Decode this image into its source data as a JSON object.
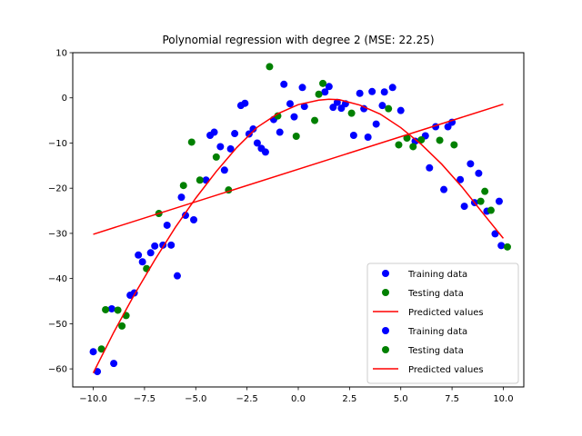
{
  "chart_data": {
    "type": "scatter",
    "title": "Polynomial regression with degree 2 (MSE: 22.25)",
    "xlabel": "",
    "ylabel": "",
    "xlim": [
      -11,
      11
    ],
    "ylim": [
      -64,
      10
    ],
    "x_ticks": [
      -10.0,
      -7.5,
      -5.0,
      -2.5,
      0.0,
      2.5,
      5.0,
      7.5,
      10.0
    ],
    "x_tick_labels": [
      "−10.0",
      "−7.5",
      "−5.0",
      "−2.5",
      "0.0",
      "2.5",
      "5.0",
      "7.5",
      "10.0"
    ],
    "y_ticks": [
      -60,
      -50,
      -40,
      -30,
      -20,
      -10,
      0,
      10
    ],
    "y_tick_labels": [
      "−60",
      "−50",
      "−40",
      "−30",
      "−20",
      "−10",
      "0",
      "10"
    ],
    "grid": false,
    "legend_position": "lower-right",
    "legend": [
      {
        "label": "Training data",
        "kind": "marker",
        "color": "#0000ff"
      },
      {
        "label": "Testing data",
        "kind": "marker",
        "color": "#008000"
      },
      {
        "label": "Predicted values",
        "kind": "line",
        "color": "#ff0000"
      },
      {
        "label": "Training data",
        "kind": "marker",
        "color": "#0000ff"
      },
      {
        "label": "Testing data",
        "kind": "marker",
        "color": "#008000"
      },
      {
        "label": "Predicted values",
        "kind": "line",
        "color": "#ff0000"
      }
    ],
    "series": [
      {
        "name": "Training data",
        "kind": "scatter",
        "color": "#0000ff",
        "points": [
          [
            -10.0,
            -56.2
          ],
          [
            -9.8,
            -60.6
          ],
          [
            -9.1,
            -46.7
          ],
          [
            -9.0,
            -58.8
          ],
          [
            -8.2,
            -43.7
          ],
          [
            -8.0,
            -43.2
          ],
          [
            -7.8,
            -34.8
          ],
          [
            -7.6,
            -36.3
          ],
          [
            -7.2,
            -34.3
          ],
          [
            -7.0,
            -32.8
          ],
          [
            -6.6,
            -32.6
          ],
          [
            -6.4,
            -28.2
          ],
          [
            -6.2,
            -32.6
          ],
          [
            -5.9,
            -39.4
          ],
          [
            -5.7,
            -22.0
          ],
          [
            -5.5,
            -26.0
          ],
          [
            -5.1,
            -27.0
          ],
          [
            -4.5,
            -18.2
          ],
          [
            -4.3,
            -8.3
          ],
          [
            -4.1,
            -7.6
          ],
          [
            -3.8,
            -10.8
          ],
          [
            -3.6,
            -16.0
          ],
          [
            -3.3,
            -11.3
          ],
          [
            -3.1,
            -7.9
          ],
          [
            -2.8,
            -1.7
          ],
          [
            -2.6,
            -1.2
          ],
          [
            -2.4,
            -8.0
          ],
          [
            -2.2,
            -6.9
          ],
          [
            -2.0,
            -10.0
          ],
          [
            -1.8,
            -11.2
          ],
          [
            -1.6,
            -12.0
          ],
          [
            -1.2,
            -4.8
          ],
          [
            -0.9,
            -7.6
          ],
          [
            -0.7,
            3.0
          ],
          [
            -0.4,
            -1.3
          ],
          [
            -0.2,
            -4.2
          ],
          [
            0.2,
            2.3
          ],
          [
            0.3,
            -1.9
          ],
          [
            1.3,
            1.3
          ],
          [
            1.5,
            2.5
          ],
          [
            1.7,
            -2.1
          ],
          [
            1.9,
            -1.0
          ],
          [
            2.1,
            -2.3
          ],
          [
            2.3,
            -1.3
          ],
          [
            2.7,
            -8.3
          ],
          [
            3.0,
            1.0
          ],
          [
            3.2,
            -2.4
          ],
          [
            3.4,
            -8.7
          ],
          [
            3.6,
            1.4
          ],
          [
            3.8,
            -5.8
          ],
          [
            4.1,
            -1.7
          ],
          [
            4.2,
            1.3
          ],
          [
            4.6,
            2.3
          ],
          [
            5.0,
            -2.8
          ],
          [
            5.7,
            -9.6
          ],
          [
            6.2,
            -8.4
          ],
          [
            6.4,
            -15.5
          ],
          [
            6.7,
            -6.4
          ],
          [
            7.1,
            -20.3
          ],
          [
            7.3,
            -6.4
          ],
          [
            7.5,
            -5.4
          ],
          [
            7.9,
            -18.1
          ],
          [
            8.1,
            -24.0
          ],
          [
            8.4,
            -14.6
          ],
          [
            8.6,
            -23.2
          ],
          [
            8.8,
            -16.7
          ],
          [
            9.2,
            -25.1
          ],
          [
            9.6,
            -30.1
          ],
          [
            9.8,
            -22.9
          ],
          [
            9.9,
            -32.7
          ]
        ]
      },
      {
        "name": "Testing data",
        "kind": "scatter",
        "color": "#008000",
        "points": [
          [
            -9.6,
            -55.6
          ],
          [
            -9.4,
            -46.9
          ],
          [
            -8.8,
            -47.0
          ],
          [
            -8.6,
            -50.5
          ],
          [
            -8.4,
            -48.2
          ],
          [
            -7.4,
            -37.8
          ],
          [
            -6.8,
            -25.6
          ],
          [
            -5.6,
            -19.4
          ],
          [
            -5.2,
            -9.8
          ],
          [
            -4.8,
            -18.2
          ],
          [
            -4.0,
            -13.1
          ],
          [
            -3.4,
            -20.4
          ],
          [
            -1.4,
            6.9
          ],
          [
            -1.0,
            -4.0
          ],
          [
            -0.1,
            -8.5
          ],
          [
            0.8,
            -5.0
          ],
          [
            1.0,
            0.8
          ],
          [
            1.2,
            3.2
          ],
          [
            2.6,
            -3.4
          ],
          [
            4.4,
            -2.4
          ],
          [
            4.9,
            -10.4
          ],
          [
            5.3,
            -8.9
          ],
          [
            5.6,
            -10.8
          ],
          [
            6.0,
            -9.3
          ],
          [
            6.9,
            -9.4
          ],
          [
            7.6,
            -10.4
          ],
          [
            8.9,
            -22.9
          ],
          [
            9.1,
            -20.7
          ],
          [
            9.4,
            -24.9
          ],
          [
            10.2,
            -33.0
          ]
        ]
      },
      {
        "name": "Predicted values",
        "kind": "line",
        "color": "#ff0000",
        "points": [
          [
            -10.0,
            -30.2
          ],
          [
            10.0,
            -1.4
          ]
        ]
      },
      {
        "name": "Predicted values",
        "kind": "curve",
        "color": "#ff0000",
        "points": [
          [
            -10.0,
            -60.9
          ],
          [
            -9.0,
            -51.9
          ],
          [
            -8.0,
            -43.6
          ],
          [
            -7.0,
            -35.9
          ],
          [
            -6.0,
            -28.7
          ],
          [
            -5.0,
            -22.2
          ],
          [
            -4.0,
            -16.3
          ],
          [
            -3.0,
            -11.0
          ],
          [
            -2.0,
            -6.5
          ],
          [
            -1.0,
            -3.5
          ],
          [
            0.0,
            -1.5
          ],
          [
            1.0,
            -0.5
          ],
          [
            1.5,
            -0.3
          ],
          [
            2.0,
            -0.4
          ],
          [
            3.0,
            -1.6
          ],
          [
            4.0,
            -3.6
          ],
          [
            5.0,
            -6.6
          ],
          [
            6.0,
            -10.3
          ],
          [
            7.0,
            -14.7
          ],
          [
            8.0,
            -19.8
          ],
          [
            9.0,
            -25.5
          ],
          [
            10.0,
            -31.1
          ]
        ]
      }
    ]
  }
}
